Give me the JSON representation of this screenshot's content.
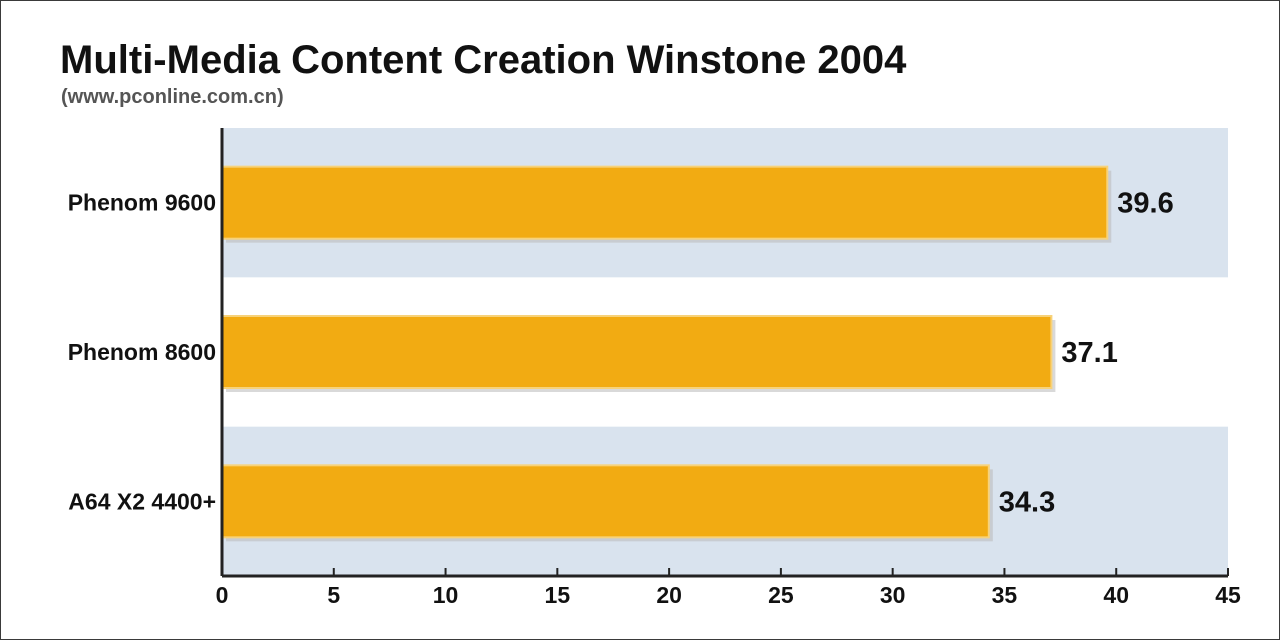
{
  "chart_data": {
    "type": "bar",
    "orientation": "horizontal",
    "title": "Multi-Media Content Creation Winstone 2004",
    "subtitle": "(www.pconline.com.cn)",
    "categories": [
      "Phenom 9600",
      "Phenom 8600",
      "A64 X2 4400+"
    ],
    "values": [
      39.6,
      37.1,
      34.3
    ],
    "value_labels": [
      "39.6",
      "37.1",
      "34.3"
    ],
    "xlabel": "",
    "ylabel": "",
    "xlim": [
      0,
      45
    ],
    "x_ticks": [
      0,
      5,
      10,
      15,
      20,
      25,
      30,
      35,
      40,
      45
    ],
    "x_tick_labels": [
      "0",
      "5",
      "10",
      "15",
      "20",
      "25",
      "30",
      "35",
      "40",
      "45"
    ],
    "grid": false,
    "legend": "none",
    "colors": {
      "bar": "#f2ab12",
      "band": "#d9e3ee",
      "axis": "#222222"
    }
  }
}
